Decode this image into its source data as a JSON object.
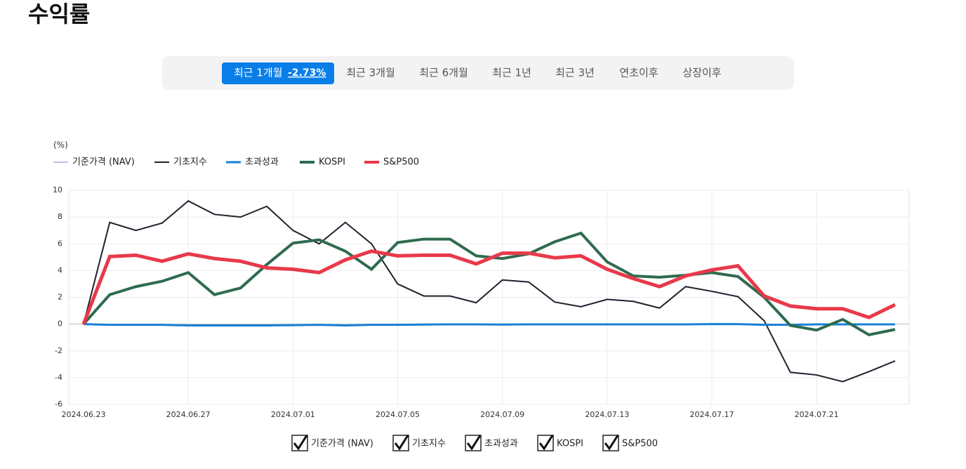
{
  "title": "수익률",
  "tabs": [
    "최근 1개월",
    "최근 3개월",
    "최근 6개월",
    "최근 1년",
    "최근 3년",
    "연초이후",
    "상장이후"
  ],
  "active_tab_return": "-2.73%",
  "chart_data": {
    "type": "line",
    "y_unit": "(%)",
    "categories": [
      "2024.06.23",
      null,
      null,
      null,
      "2024.06.27",
      null,
      null,
      null,
      "2024.07.01",
      null,
      null,
      null,
      "2024.07.05",
      null,
      null,
      null,
      "2024.07.09",
      null,
      null,
      null,
      "2024.07.13",
      null,
      null,
      null,
      "2024.07.17",
      null,
      null,
      null,
      "2024.07.21",
      null,
      null,
      null
    ],
    "series": [
      {
        "name": "기준가격 (NAV)",
        "color": "#7f7fd9",
        "width": 1,
        "values": [
          null,
          null,
          null,
          null,
          null,
          null,
          null,
          null,
          null,
          null,
          null,
          null,
          null,
          null,
          null,
          null,
          null,
          null,
          null,
          null,
          null,
          null,
          null,
          null,
          null,
          null,
          null,
          null,
          null,
          null,
          null,
          null
        ]
      },
      {
        "name": "기초지수",
        "color": "#22202e",
        "width": 2,
        "values": [
          0,
          7.6,
          7.0,
          7.55,
          9.2,
          8.2,
          8.0,
          8.8,
          7.0,
          6.0,
          7.6,
          6.0,
          3.0,
          2.1,
          2.1,
          1.6,
          3.3,
          3.15,
          1.65,
          1.3,
          1.85,
          1.7,
          1.2,
          2.8,
          2.45,
          2.05,
          0.25,
          -3.6,
          -3.8,
          -4.3,
          -3.55,
          -2.75
        ]
      },
      {
        "name": "초과성과",
        "color": "#1a7fd6",
        "width": 3,
        "values": [
          0,
          -0.05,
          -0.05,
          -0.05,
          -0.1,
          -0.1,
          -0.1,
          -0.1,
          -0.08,
          -0.05,
          -0.1,
          -0.05,
          -0.05,
          -0.03,
          -0.02,
          -0.02,
          -0.03,
          -0.02,
          -0.02,
          -0.02,
          -0.02,
          -0.02,
          -0.02,
          -0.02,
          0,
          0,
          -0.05,
          -0.05,
          -0.02,
          -0.02,
          -0.02,
          -0.02
        ]
      },
      {
        "name": "KOSPI",
        "color": "#2e6b4f",
        "width": 4,
        "values": [
          0,
          2.2,
          2.8,
          3.2,
          3.85,
          2.2,
          2.7,
          4.45,
          6.05,
          6.3,
          5.45,
          4.1,
          6.1,
          6.35,
          6.35,
          5.1,
          4.9,
          5.25,
          6.15,
          6.8,
          4.65,
          3.6,
          3.5,
          3.65,
          3.85,
          3.55,
          2.0,
          -0.1,
          -0.45,
          0.35,
          -0.8,
          -0.4
        ]
      },
      {
        "name": "S&P500",
        "color": "#e8394a",
        "width": 5,
        "values": [
          0,
          5.05,
          5.15,
          4.7,
          5.25,
          4.9,
          4.7,
          4.2,
          4.1,
          3.85,
          4.8,
          5.45,
          5.1,
          5.15,
          5.15,
          4.5,
          5.3,
          5.3,
          4.95,
          5.1,
          4.1,
          3.4,
          2.8,
          3.6,
          4.05,
          4.35,
          2.1,
          1.35,
          1.15,
          1.15,
          0.5,
          1.45
        ]
      }
    ],
    "ylim": [
      -6,
      10
    ],
    "yticks": [
      -6,
      -4,
      -2,
      0,
      2,
      4,
      6,
      8,
      10
    ],
    "grid": true
  }
}
